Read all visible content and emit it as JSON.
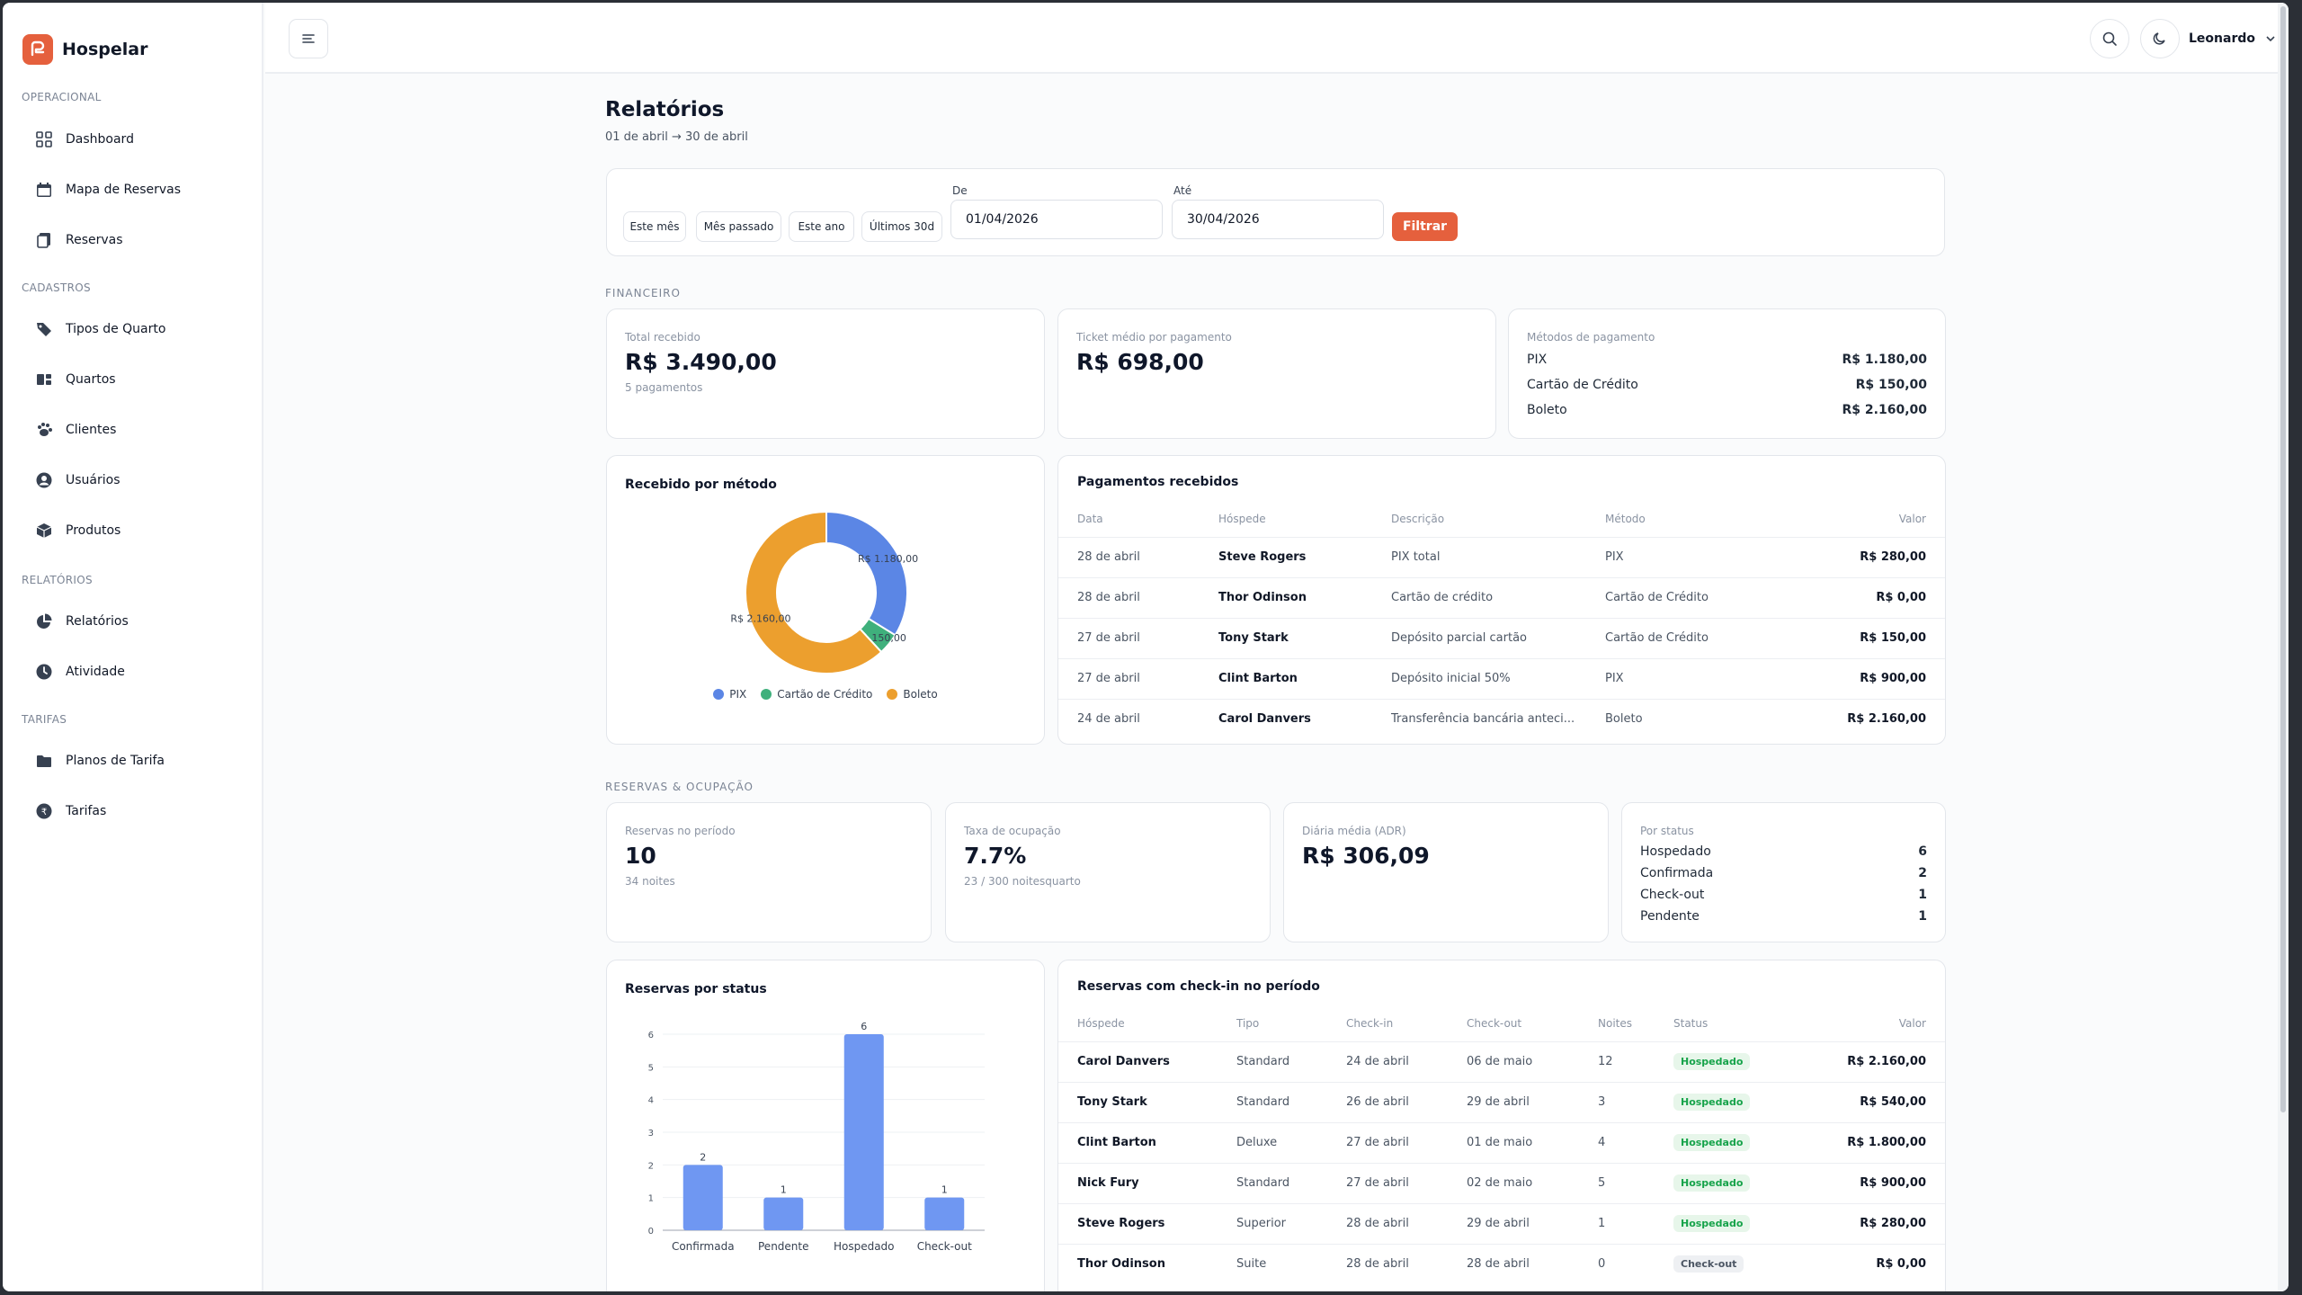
{
  "app": {
    "name": "Hospelar"
  },
  "sidebar": {
    "sections": [
      {
        "title": "OPERACIONAL",
        "items": [
          {
            "label": "Dashboard",
            "icon": "grid-icon"
          },
          {
            "label": "Mapa de Reservas",
            "icon": "calendar-icon"
          },
          {
            "label": "Reservas",
            "icon": "copy-icon"
          }
        ]
      },
      {
        "title": "CADASTROS",
        "items": [
          {
            "label": "Tipos de Quarto",
            "icon": "tag-icon"
          },
          {
            "label": "Quartos",
            "icon": "rooms-icon"
          },
          {
            "label": "Clientes",
            "icon": "paw-icon"
          },
          {
            "label": "Usuários",
            "icon": "user-circle-icon"
          },
          {
            "label": "Produtos",
            "icon": "box-icon"
          }
        ]
      },
      {
        "title": "RELATÓRIOS",
        "items": [
          {
            "label": "Relatórios",
            "icon": "pie-icon"
          },
          {
            "label": "Atividade",
            "icon": "clock-icon"
          }
        ]
      },
      {
        "title": "TARIFAS",
        "items": [
          {
            "label": "Planos de Tarifa",
            "icon": "folder-icon"
          },
          {
            "label": "Tarifas",
            "icon": "coin-icon"
          }
        ]
      }
    ]
  },
  "topbar": {
    "user": "Leonardo"
  },
  "page": {
    "title": "Relatórios",
    "range": "01 de abril → 30 de abril"
  },
  "filters": {
    "presets": [
      "Este mês",
      "Mês passado",
      "Este ano",
      "Últimos 30d"
    ],
    "from_label": "De",
    "from_value": "01/04/2026",
    "to_label": "Até",
    "to_value": "30/04/2026",
    "submit": "Filtrar"
  },
  "financeiro": {
    "section": "FINANCEIRO",
    "total_label": "Total recebido",
    "total_value": "R$ 3.490,00",
    "total_sub": "5 pagamentos",
    "ticket_label": "Ticket médio por pagamento",
    "ticket_value": "R$ 698,00",
    "methods_label": "Métodos de pagamento",
    "methods": [
      {
        "name": "PIX",
        "value": "R$ 1.180,00"
      },
      {
        "name": "Cartão de Crédito",
        "value": "R$ 150,00"
      },
      {
        "name": "Boleto",
        "value": "R$ 2.160,00"
      }
    ]
  },
  "donut": {
    "title": "Recebido por método",
    "labels": [
      "R$ 1.180,00",
      "R$ 150,00",
      "R$ 2.160,00"
    ],
    "legend": [
      "PIX",
      "Cartão de Crédito",
      "Boleto"
    ]
  },
  "payments": {
    "title": "Pagamentos recebidos",
    "headers": [
      "Data",
      "Hóspede",
      "Descrição",
      "Método",
      "Valor"
    ],
    "rows": [
      [
        "28 de abril",
        "Steve Rogers",
        "PIX total",
        "PIX",
        "R$ 280,00"
      ],
      [
        "28 de abril",
        "Thor Odinson",
        "Cartão de crédito",
        "Cartão de Crédito",
        "R$ 0,00"
      ],
      [
        "27 de abril",
        "Tony Stark",
        "Depósito parcial cartão",
        "Cartão de Crédito",
        "R$ 150,00"
      ],
      [
        "27 de abril",
        "Clint Barton",
        "Depósito inicial 50%",
        "PIX",
        "R$ 900,00"
      ],
      [
        "24 de abril",
        "Carol Danvers",
        "Transferência bancária anteci...",
        "Boleto",
        "R$ 2.160,00"
      ]
    ]
  },
  "reservas": {
    "section": "RESERVAS & OCUPAÇÃO",
    "count_label": "Reservas no período",
    "count_value": "10",
    "count_sub": "34 noites",
    "occ_label": "Taxa de ocupação",
    "occ_value": "7.7%",
    "occ_sub": "23 / 300 noitesquarto",
    "adr_label": "Diária média (ADR)",
    "adr_value": "R$ 306,09",
    "status_label": "Por status",
    "status": [
      {
        "name": "Hospedado",
        "value": "6"
      },
      {
        "name": "Confirmada",
        "value": "2"
      },
      {
        "name": "Check-out",
        "value": "1"
      },
      {
        "name": "Pendente",
        "value": "1"
      }
    ]
  },
  "bar_title": "Reservas por status",
  "checkins": {
    "title": "Reservas com check-in no período",
    "headers": [
      "Hóspede",
      "Tipo",
      "Check-in",
      "Check-out",
      "Noites",
      "Status",
      "Valor"
    ],
    "rows": [
      [
        "Carol Danvers",
        "Standard",
        "24 de abril",
        "06 de maio",
        "12",
        "Hospedado",
        "R$ 2.160,00"
      ],
      [
        "Tony Stark",
        "Standard",
        "26 de abril",
        "29 de abril",
        "3",
        "Hospedado",
        "R$ 540,00"
      ],
      [
        "Clint Barton",
        "Deluxe",
        "27 de abril",
        "01 de maio",
        "4",
        "Hospedado",
        "R$ 1.800,00"
      ],
      [
        "Nick Fury",
        "Standard",
        "27 de abril",
        "02 de maio",
        "5",
        "Hospedado",
        "R$ 900,00"
      ],
      [
        "Steve Rogers",
        "Superior",
        "28 de abril",
        "29 de abril",
        "1",
        "Hospedado",
        "R$ 280,00"
      ],
      [
        "Thor Odinson",
        "Suite",
        "28 de abril",
        "28 de abril",
        "0",
        "Check-out",
        "R$ 0,00"
      ]
    ]
  },
  "chart_data": [
    {
      "type": "pie",
      "title": "Recebido por método",
      "categories": [
        "PIX",
        "Cartão de Crédito",
        "Boleto"
      ],
      "values": [
        1180,
        150,
        2160
      ],
      "data_labels": [
        "R$ 1.180,00",
        "R$ 150,00",
        "R$ 2.160,00"
      ],
      "colors": [
        "#5b86e5",
        "#3fb07c",
        "#ec9f2e"
      ],
      "legend": "bottom"
    },
    {
      "type": "bar",
      "title": "Reservas por status",
      "categories": [
        "Confirmada",
        "Pendente",
        "Hospedado",
        "Check-out"
      ],
      "values": [
        2,
        1,
        6,
        1
      ],
      "ylim": [
        0,
        6
      ],
      "yticks": [
        0,
        1,
        2,
        3,
        4,
        5,
        6
      ],
      "color": "#6f97f2",
      "grid": true
    }
  ]
}
